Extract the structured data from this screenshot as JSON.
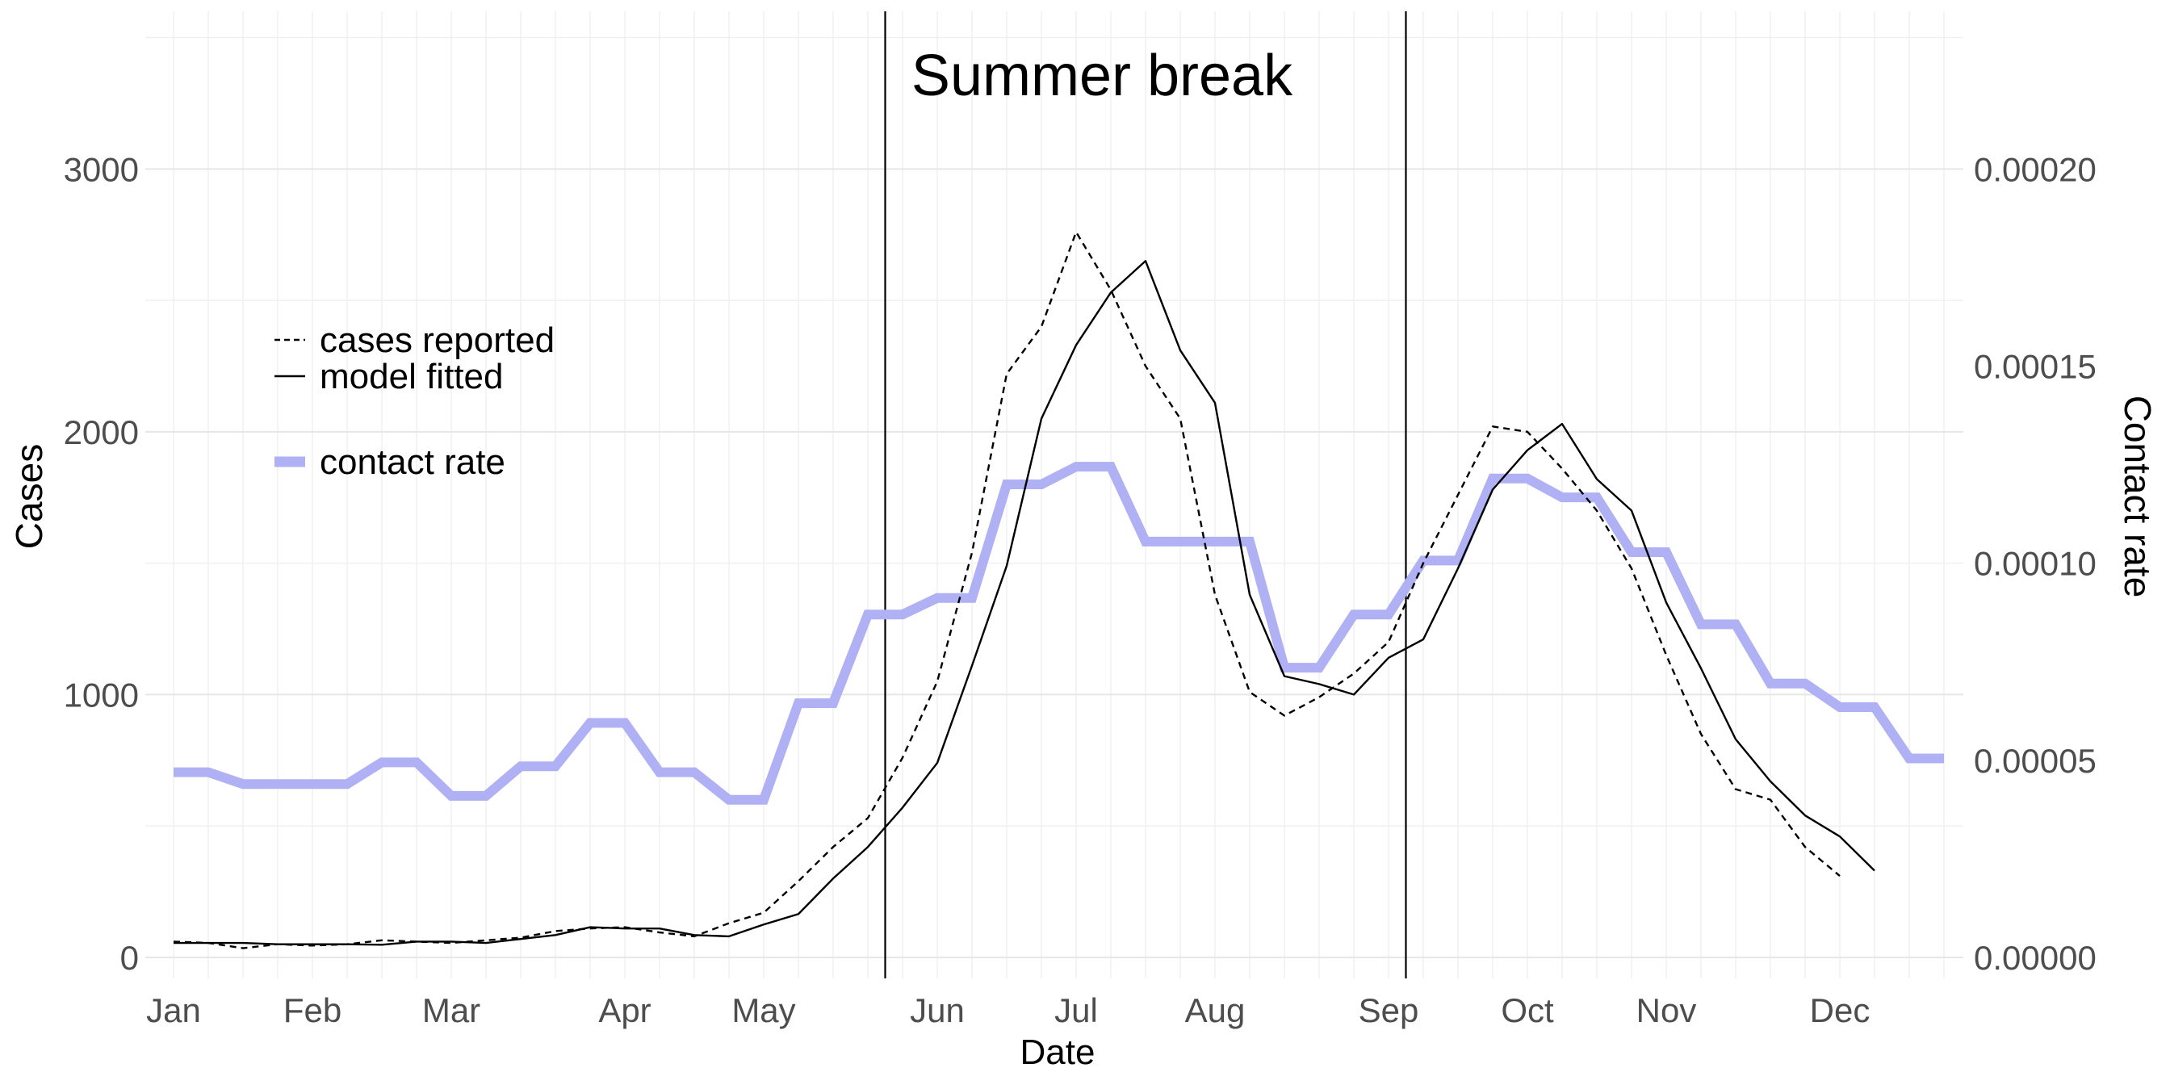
{
  "chart_data": {
    "type": "line",
    "title": "Summer break",
    "xlabel": "Date",
    "ylabel_left": "Cases",
    "ylabel_right": "Contact rate",
    "x_unit": "week",
    "x_ticks": [
      "Jan",
      "Feb",
      "Mar",
      "Apr",
      "May",
      "Jun",
      "Jul",
      "Aug",
      "Sep",
      "Oct",
      "Nov",
      "Dec"
    ],
    "y_left_ticks": [
      "0",
      "1000",
      "2000",
      "3000"
    ],
    "y_right_ticks": [
      "0.00000",
      "0.00005",
      "0.00010",
      "0.00015",
      "0.00020"
    ],
    "ylim_left": [
      -80,
      3600
    ],
    "ylim_right": [
      -5.3e-06,
      0.00024
    ],
    "vlines": [
      {
        "week": 20.5
      },
      {
        "week": 35.5
      }
    ],
    "grid": true,
    "legend_position": "top-left",
    "series": [
      {
        "name": "cases reported",
        "axis": "left",
        "style": "dashed",
        "color": "#000000",
        "values": [
          60,
          55,
          35,
          50,
          45,
          50,
          65,
          60,
          55,
          65,
          75,
          100,
          110,
          115,
          95,
          80,
          130,
          170,
          290,
          420,
          530,
          760,
          1050,
          1540,
          2220,
          2400,
          2760,
          2540,
          2250,
          2050,
          1380,
          1010,
          920,
          990,
          1080,
          1200,
          1500,
          1760,
          2020,
          2000,
          1860,
          1700,
          1480,
          1150,
          850,
          640,
          600,
          420,
          310
        ]
      },
      {
        "name": "model fitted",
        "axis": "left",
        "style": "solid",
        "color": "#000000",
        "values": [
          55,
          55,
          55,
          50,
          50,
          50,
          48,
          60,
          60,
          55,
          70,
          85,
          115,
          110,
          110,
          85,
          80,
          125,
          165,
          300,
          420,
          570,
          740,
          1110,
          1490,
          2050,
          2330,
          2530,
          2650,
          2310,
          2110,
          1380,
          1070,
          1040,
          1000,
          1140,
          1210,
          1480,
          1780,
          1930,
          2030,
          1820,
          1700,
          1350,
          1100,
          830,
          670,
          540,
          460,
          330
        ]
      },
      {
        "name": "contact rate",
        "axis": "right",
        "style": "thick",
        "color": "#b0b0f4",
        "steps": [
          {
            "start": 0,
            "end": 1,
            "value": 4.7e-05
          },
          {
            "start": 2,
            "end": 5,
            "value": 4.4e-05
          },
          {
            "start": 6,
            "end": 7,
            "value": 4.95e-05
          },
          {
            "start": 8,
            "end": 9,
            "value": 4.1e-05
          },
          {
            "start": 10,
            "end": 11,
            "value": 4.85e-05
          },
          {
            "start": 12,
            "end": 13,
            "value": 5.95e-05
          },
          {
            "start": 14,
            "end": 15,
            "value": 4.7e-05
          },
          {
            "start": 16,
            "end": 17,
            "value": 4e-05
          },
          {
            "start": 18,
            "end": 19,
            "value": 6.45e-05
          },
          {
            "start": 20,
            "end": 21,
            "value": 8.7e-05
          },
          {
            "start": 22,
            "end": 23,
            "value": 9.12e-05
          },
          {
            "start": 24,
            "end": 25,
            "value": 0.00012
          },
          {
            "start": 26,
            "end": 27,
            "value": 0.0001245
          },
          {
            "start": 28,
            "end": 31,
            "value": 0.0001055
          },
          {
            "start": 32,
            "end": 33,
            "value": 7.35e-05
          },
          {
            "start": 34,
            "end": 35,
            "value": 8.7e-05
          },
          {
            "start": 36,
            "end": 37,
            "value": 0.0001007
          },
          {
            "start": 38,
            "end": 39,
            "value": 0.0001215
          },
          {
            "start": 40,
            "end": 41,
            "value": 0.0001167
          },
          {
            "start": 42,
            "end": 43,
            "value": 0.0001028
          },
          {
            "start": 44,
            "end": 45,
            "value": 8.45e-05
          },
          {
            "start": 46,
            "end": 47,
            "value": 6.95e-05
          },
          {
            "start": 48,
            "end": 49,
            "value": 6.35e-05
          },
          {
            "start": 50,
            "end": 51,
            "value": 5.05e-05
          }
        ]
      }
    ]
  }
}
